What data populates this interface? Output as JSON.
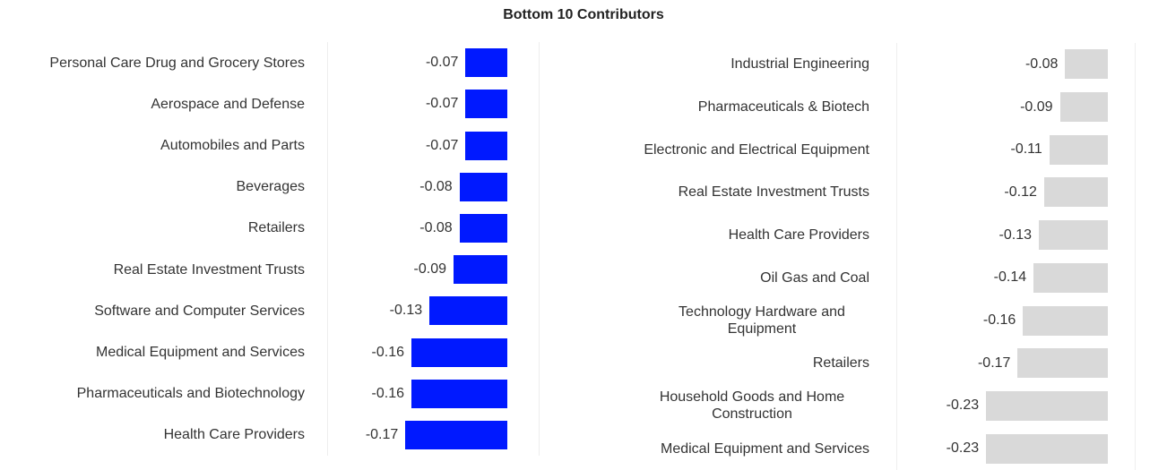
{
  "title": "Bottom 10 Contributors",
  "chart_data": [
    {
      "type": "barh",
      "color": "#0019ff",
      "categories": [
        "Personal Care Drug and Grocery Stores",
        "Aerospace and Defense",
        "Automobiles and Parts",
        "Beverages",
        "Retailers",
        "Real Estate Investment Trusts",
        "Software and Computer Services",
        "Medical Equipment and Services",
        "Pharmaceuticals and Biotechnology",
        "Health Care Providers"
      ],
      "values": [
        -0.07,
        -0.07,
        -0.07,
        -0.08,
        -0.08,
        -0.09,
        -0.13,
        -0.16,
        -0.16,
        -0.17
      ],
      "xlim": [
        -0.3,
        0.05
      ]
    },
    {
      "type": "barh",
      "color": "#d9d9d9",
      "categories": [
        "Industrial Engineering",
        "Pharmaceuticals & Biotech",
        "Electronic and Electrical Equipment",
        "Real Estate Investment Trusts",
        "Health Care Providers",
        "Oil Gas and Coal",
        "Technology Hardware and Equipment",
        "Retailers",
        "Household Goods and Home Construction",
        "Medical Equipment and Services"
      ],
      "values": [
        -0.08,
        -0.09,
        -0.11,
        -0.12,
        -0.13,
        -0.14,
        -0.16,
        -0.17,
        -0.23,
        -0.23
      ],
      "xlim": [
        -0.4,
        0.05
      ]
    }
  ]
}
